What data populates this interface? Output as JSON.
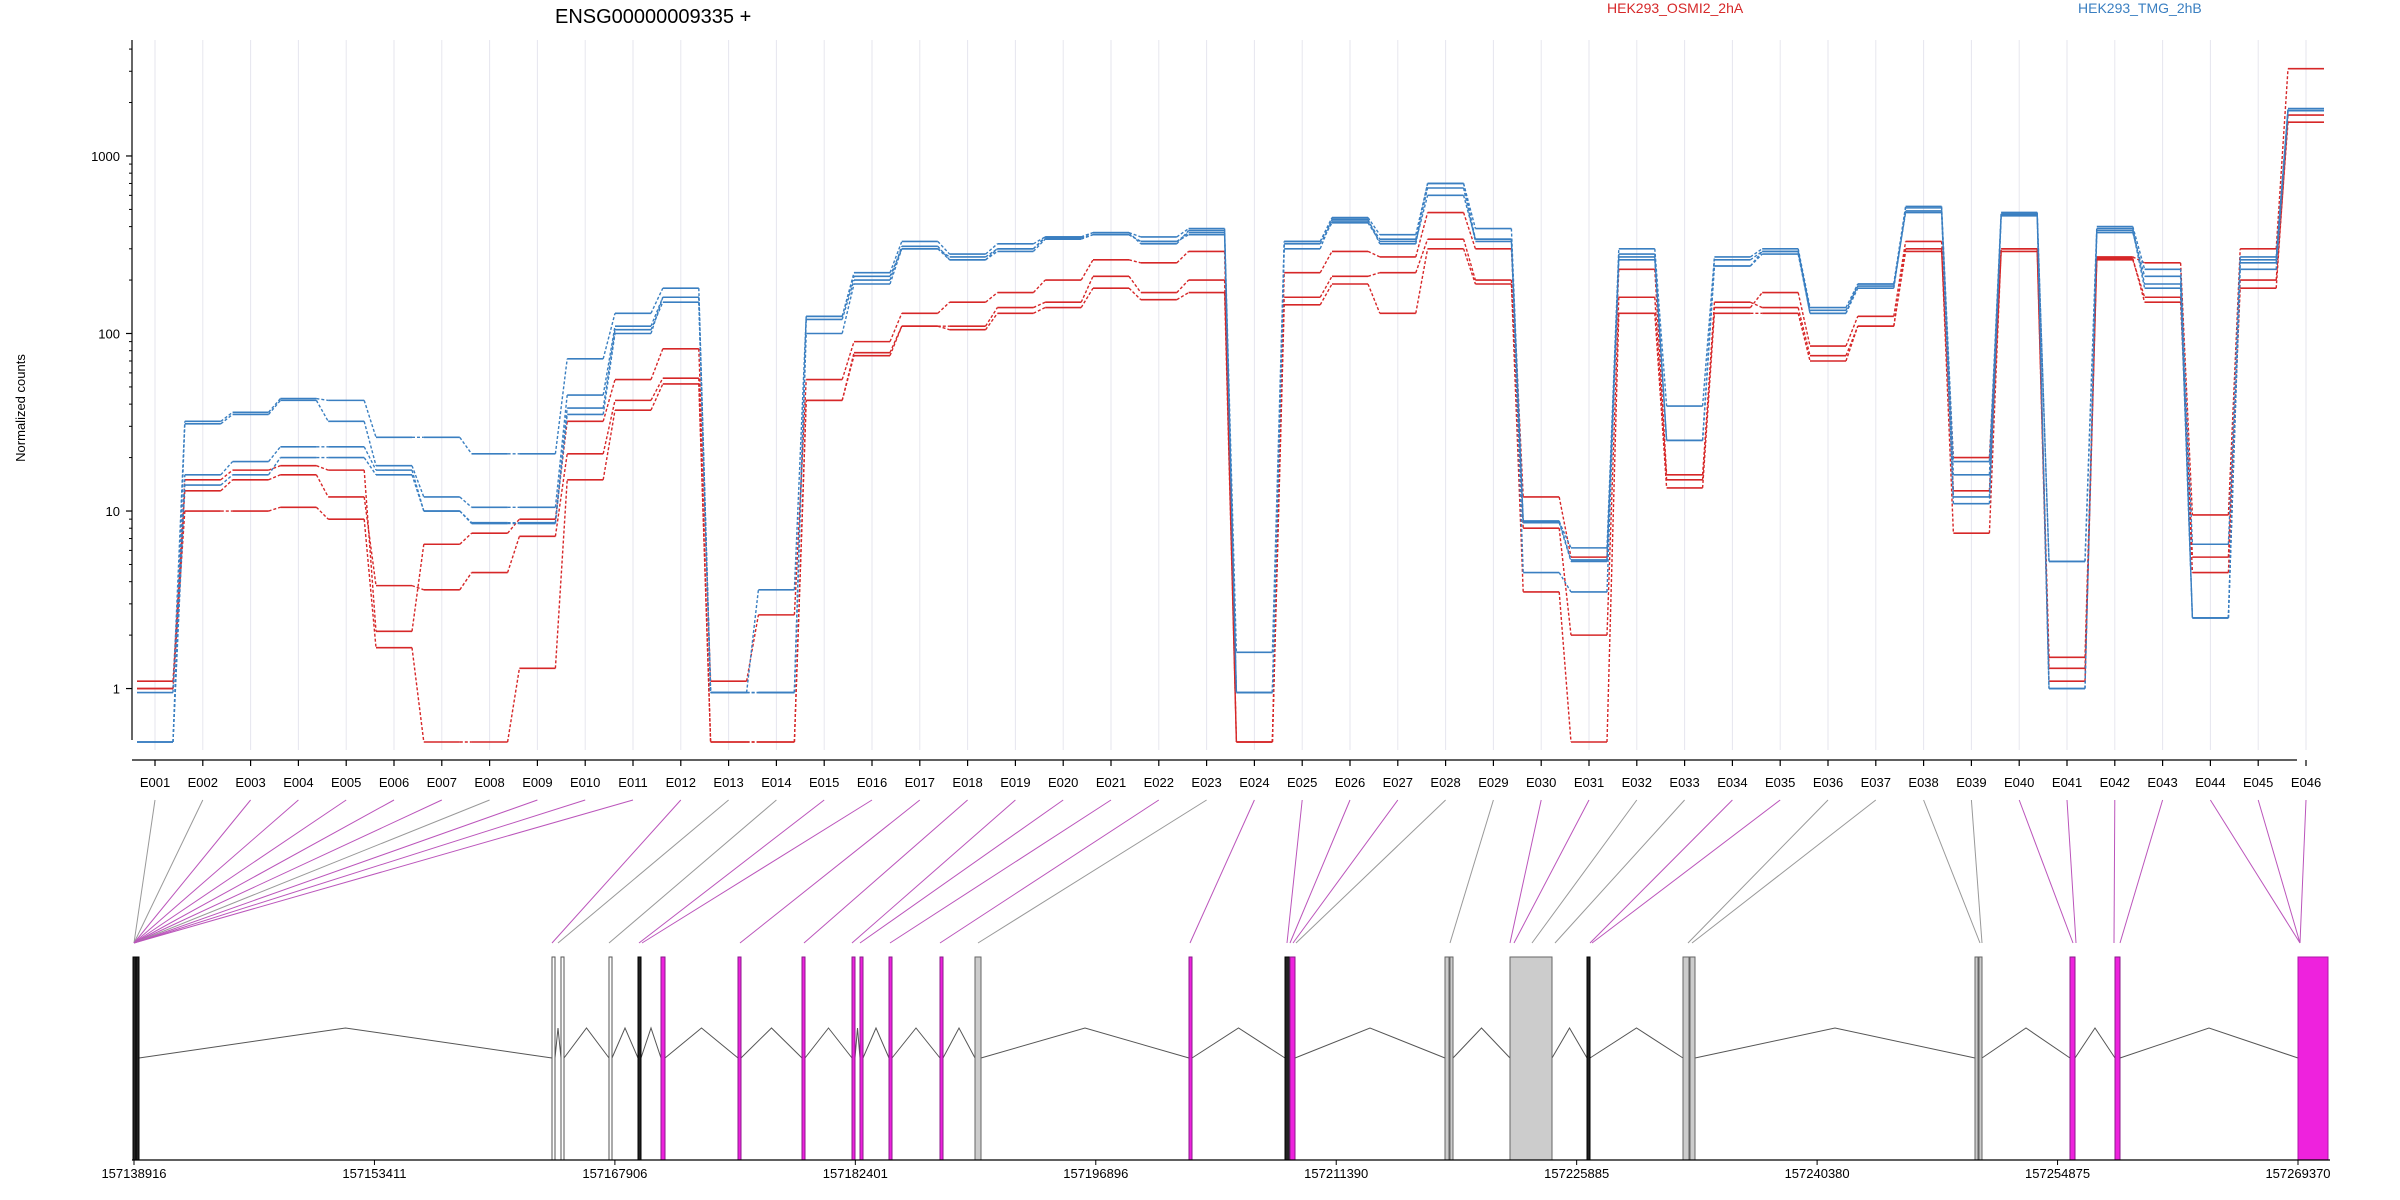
{
  "chart_data": {
    "type": "line",
    "title": "ENSG00000009335 +",
    "ylabel": "Normalized counts",
    "yscale": "log",
    "ylim": [
      0.5,
      4500
    ],
    "yticks": [
      1,
      10,
      100,
      1000
    ],
    "yticklabels": [
      "1",
      "10",
      "100",
      "1000"
    ],
    "grid": "vertical",
    "legend_placement": "top",
    "categories": [
      "E001",
      "E002",
      "E003",
      "E004",
      "E005",
      "E006",
      "E007",
      "E008",
      "E009",
      "E010",
      "E011",
      "E012",
      "E013",
      "E014",
      "E015",
      "E016",
      "E017",
      "E018",
      "E019",
      "E020",
      "E021",
      "E022",
      "E023",
      "E024",
      "E025",
      "E026",
      "E027",
      "E028",
      "E029",
      "E030",
      "E031",
      "E032",
      "E033",
      "E034",
      "E035",
      "E036",
      "E037",
      "E038",
      "E039",
      "E040",
      "E041",
      "E042",
      "E043",
      "E044",
      "E045",
      "E046"
    ],
    "groups": [
      {
        "name": "HEK293_OSMI2_2hA",
        "color": "#d62728"
      },
      {
        "name": "HEK293_TMG_2hB",
        "color": "#3a7fc1"
      }
    ],
    "series": [
      {
        "group": 0,
        "values": [
          1.1,
          15,
          17,
          18,
          17,
          2.1,
          6.5,
          7.5,
          9,
          32,
          55,
          82,
          1.1,
          2.6,
          55,
          90,
          130,
          150,
          170,
          200,
          260,
          250,
          290,
          0.5,
          220,
          290,
          270,
          480,
          300,
          12,
          5.5,
          230,
          16,
          140,
          170,
          85,
          125,
          330,
          20,
          300,
          1.5,
          270,
          250,
          9.5,
          300,
          3100
        ]
      },
      {
        "group": 0,
        "values": [
          1.0,
          13,
          15,
          16,
          12,
          3.8,
          3.6,
          4.5,
          7.2,
          21,
          42,
          56,
          0.5,
          0.5,
          42,
          78,
          110,
          110,
          140,
          150,
          210,
          170,
          200,
          0.5,
          160,
          210,
          220,
          340,
          200,
          8,
          2.0,
          160,
          15,
          150,
          140,
          75,
          110,
          300,
          7.5,
          300,
          1.3,
          260,
          160,
          5.5,
          180,
          1700
        ]
      },
      {
        "group": 0,
        "values": [
          1.0,
          10,
          10,
          10.5,
          9,
          1.7,
          0.5,
          0.5,
          1.3,
          15,
          37,
          52,
          0.5,
          0.5,
          42,
          75,
          110,
          105,
          130,
          140,
          180,
          155,
          170,
          0.5,
          145,
          190,
          130,
          300,
          190,
          3.5,
          0.5,
          130,
          13.5,
          130,
          130,
          70,
          110,
          290,
          13,
          290,
          1.1,
          265,
          150,
          4.5,
          200,
          1550
        ]
      },
      {
        "group": 1,
        "values": [
          0.95,
          32,
          36,
          43,
          42,
          26,
          26,
          21,
          21,
          72,
          130,
          180,
          0.95,
          3.6,
          125,
          220,
          330,
          280,
          320,
          350,
          370,
          350,
          390,
          1.6,
          330,
          450,
          360,
          700,
          390,
          8.7,
          6.2,
          300,
          39,
          270,
          300,
          140,
          190,
          520,
          19,
          480,
          5.2,
          400,
          230,
          6.5,
          270,
          1850
        ]
      },
      {
        "group": 1,
        "values": [
          0.5,
          31,
          35,
          42,
          32,
          18,
          12,
          10.5,
          10.5,
          45,
          110,
          160,
          0.95,
          0.95,
          125,
          210,
          300,
          260,
          290,
          340,
          360,
          330,
          360,
          0.95,
          320,
          420,
          330,
          600,
          340,
          4.5,
          3.5,
          280,
          25,
          260,
          290,
          130,
          190,
          510,
          16,
          470,
          5.2,
          370,
          210,
          2.5,
          230,
          1800
        ]
      },
      {
        "group": 1,
        "values": [
          0.5,
          16,
          19,
          23,
          23,
          17,
          10,
          8.5,
          8.5,
          35,
          100,
          160,
          0.95,
          0.95,
          100,
          190,
          300,
          270,
          300,
          350,
          370,
          320,
          380,
          0.95,
          300,
          440,
          320,
          700,
          340,
          8.8,
          5.3,
          270,
          25,
          240,
          290,
          135,
          185,
          480,
          12,
          480,
          1.0,
          390,
          190,
          2.5,
          260,
          1800
        ]
      },
      {
        "group": 1,
        "values": [
          0.5,
          14,
          16,
          20,
          20,
          16,
          10,
          8.6,
          8.6,
          38,
          105,
          150,
          0.95,
          0.95,
          120,
          200,
          310,
          260,
          300,
          345,
          360,
          330,
          370,
          0.95,
          330,
          430,
          340,
          660,
          330,
          8.6,
          5.2,
          260,
          25,
          240,
          280,
          130,
          180,
          490,
          11,
          460,
          1.0,
          380,
          180,
          2.5,
          250,
          1800
        ]
      }
    ],
    "genomic_ticks": [
      "157138916",
      "157153411",
      "157167906",
      "157182401",
      "157196896",
      "157211390",
      "157225885",
      "157240380",
      "157254875",
      "157269370"
    ]
  },
  "colors": {
    "osmi": "#d62728",
    "tmg": "#3a7fc1",
    "link_default": "#999999",
    "link_highlight": "#bb55bb",
    "exon_highlight": "#ee22dd",
    "exon_default": "#cccccc"
  }
}
